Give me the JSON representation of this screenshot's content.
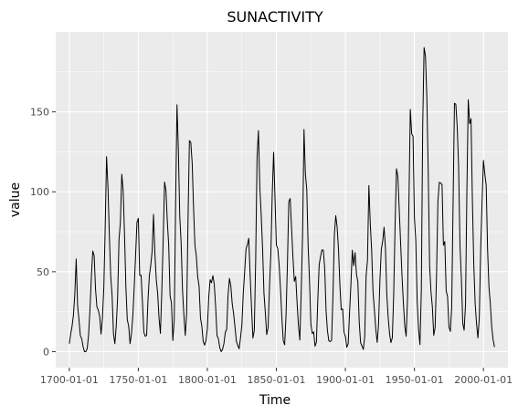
{
  "chart_data": {
    "type": "line",
    "title": "SUNACTIVITY",
    "xlabel": "Time",
    "ylabel": "value",
    "x_ticks": [
      "1700-01-01",
      "1750-01-01",
      "1800-01-01",
      "1850-01-01",
      "1900-01-01",
      "1950-01-01",
      "2000-01-01"
    ],
    "x_tick_years": [
      1700,
      1750,
      1800,
      1850,
      1900,
      1950,
      2000
    ],
    "y_ticks": [
      0,
      50,
      100,
      150
    ],
    "xlim": [
      "1690-03-01",
      "2017-10-01"
    ],
    "ylim": [
      -10,
      200
    ],
    "grid": true,
    "series": [
      {
        "x_start_year": 1700,
        "x_step_years": 1,
        "values": [
          5,
          11,
          16,
          23,
          36,
          58,
          29,
          20,
          10,
          8,
          3,
          0,
          0,
          2,
          11,
          27,
          47,
          63,
          60,
          39,
          28,
          26,
          22,
          11,
          21,
          40,
          78,
          122,
          103,
          73,
          47,
          35,
          11,
          5,
          16,
          34,
          70,
          81,
          111,
          101,
          73,
          40,
          20,
          16,
          5,
          11,
          22,
          40,
          60,
          80.9,
          83.4,
          47.7,
          47.8,
          30.7,
          12.2,
          9.6,
          10.2,
          32.4,
          47.6,
          54,
          62.9,
          85.9,
          61.2,
          45.1,
          36.4,
          20.9,
          11.4,
          37.8,
          69.8,
          106.1,
          100.8,
          81.6,
          66.5,
          34.8,
          30.6,
          7,
          19.8,
          92.5,
          154.4,
          125.9,
          84.8,
          68.1,
          38.5,
          22.8,
          10.2,
          24.1,
          82.9,
          132,
          130.9,
          118.1,
          89.9,
          66.6,
          60,
          46.9,
          41,
          21.3,
          16,
          6.4,
          4.1,
          6.8,
          14.5,
          34,
          45,
          43.1,
          47.5,
          42.2,
          28.1,
          10.1,
          8.1,
          2.5,
          0,
          1.4,
          5,
          12.2,
          13.9,
          35.4,
          45.8,
          41.1,
          30.1,
          23.9,
          15.6,
          6.6,
          4,
          1.8,
          8.5,
          16.6,
          36.3,
          49.6,
          64.2,
          67,
          70.9,
          47.8,
          27.5,
          8.5,
          13.2,
          56.9,
          121.5,
          138.3,
          103.2,
          85.7,
          64.6,
          36.7,
          24.2,
          10.7,
          15,
          40.1,
          61.5,
          98.5,
          124.7,
          96.3,
          66.6,
          64.5,
          54.1,
          39,
          20.6,
          6.7,
          4.3,
          22.7,
          54.8,
          93.8,
          95.8,
          77.2,
          59.1,
          44,
          47,
          30.5,
          16.3,
          7.3,
          37.6,
          74,
          139,
          111.2,
          101.6,
          66.2,
          44.7,
          17,
          11.3,
          12.4,
          3.4,
          6,
          32.3,
          54.3,
          59.7,
          63.7,
          63.5,
          52.2,
          25.4,
          13.1,
          6.8,
          6.3,
          7.1,
          35.6,
          73,
          85.1,
          78,
          64,
          41.8,
          26.2,
          26.7,
          12.1,
          9.5,
          2.7,
          5,
          24.4,
          42,
          63.5,
          53.8,
          62,
          48.5,
          43.9,
          18.6,
          5.7,
          3.6,
          1.4,
          9.6,
          47.4,
          57.1,
          103.9,
          80.6,
          63.6,
          37.6,
          26.1,
          14.2,
          5.8,
          16.7,
          44.3,
          63.9,
          69,
          77.8,
          64.9,
          35.7,
          21.2,
          11.1,
          5.7,
          8.7,
          36.1,
          79.7,
          114.4,
          109.6,
          88.8,
          67.8,
          47.5,
          30.6,
          16.3,
          9.6,
          33.2,
          92.6,
          151.6,
          136.3,
          134.7,
          83.9,
          69.4,
          31.5,
          13.9,
          4.4,
          38,
          141.7,
          190.2,
          184.8,
          159,
          112.3,
          53.9,
          37.5,
          27.9,
          10.2,
          15.1,
          47,
          93.8,
          105.9,
          105.5,
          104.5,
          66.6,
          68.9,
          38,
          34.5,
          15.5,
          12.6,
          27.5,
          92.5,
          155.4,
          154.7,
          140.5,
          115.9,
          66.6,
          45.9,
          17.9,
          13.4,
          29.2,
          100.2,
          157.6,
          142.6,
          145.7,
          94.3,
          54.6,
          29.9,
          17.5,
          8.6,
          21.5,
          64.3,
          93.3,
          119.6,
          111,
          104,
          63.7,
          40.4,
          29.8,
          15.2,
          7.5,
          2.9
        ]
      }
    ]
  }
}
